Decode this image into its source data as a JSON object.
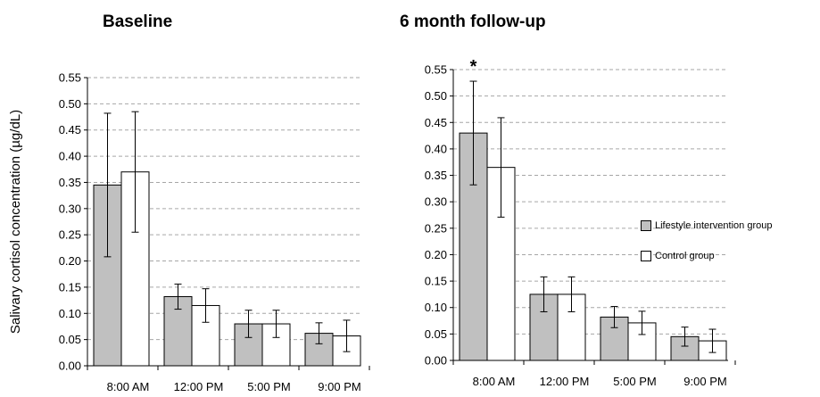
{
  "chart_data": [
    {
      "type": "bar",
      "title": "Baseline",
      "ylabel": "Salivary cortisol concentration  (µg/dL)",
      "xlabel": "",
      "categories": [
        "8:00 AM",
        "12:00 PM",
        "5:00 PM",
        "9:00 PM"
      ],
      "ylim": [
        0,
        0.55
      ],
      "yticks": [
        "0.00",
        "0.05",
        "0.10",
        "0.15",
        "0.20",
        "0.25",
        "0.30",
        "0.35",
        "0.40",
        "0.45",
        "0.50",
        "0.55"
      ],
      "grid": true,
      "series": [
        {
          "values": [
            0.345,
            0.132,
            0.08,
            0.062
          ],
          "error": [
            0.137,
            0.024,
            0.026,
            0.02
          ],
          "color": "#c0c0c0"
        },
        {
          "values": [
            0.37,
            0.115,
            0.08,
            0.057
          ],
          "error": [
            0.115,
            0.032,
            0.026,
            0.03
          ],
          "color": "#ffffff"
        }
      ]
    },
    {
      "type": "bar",
      "title": "6 month follow-up",
      "ylabel": "",
      "xlabel": "",
      "categories": [
        "8:00 AM",
        "12:00 PM",
        "5:00 PM",
        "9:00 PM"
      ],
      "ylim": [
        0,
        0.55
      ],
      "yticks": [
        "0.00",
        "0.05",
        "0.10",
        "0.15",
        "0.20",
        "0.25",
        "0.30",
        "0.35",
        "0.40",
        "0.45",
        "0.50",
        "0.55"
      ],
      "grid": true,
      "annotation": "*",
      "legend_position": "right",
      "series": [
        {
          "name": "Lifestyle intervention group",
          "values": [
            0.43,
            0.125,
            0.082,
            0.045
          ],
          "error": [
            0.098,
            0.033,
            0.02,
            0.018
          ],
          "color": "#c0c0c0"
        },
        {
          "name": "Control group",
          "values": [
            0.365,
            0.125,
            0.071,
            0.037
          ],
          "error": [
            0.094,
            0.033,
            0.022,
            0.022
          ],
          "color": "#ffffff"
        }
      ]
    }
  ]
}
